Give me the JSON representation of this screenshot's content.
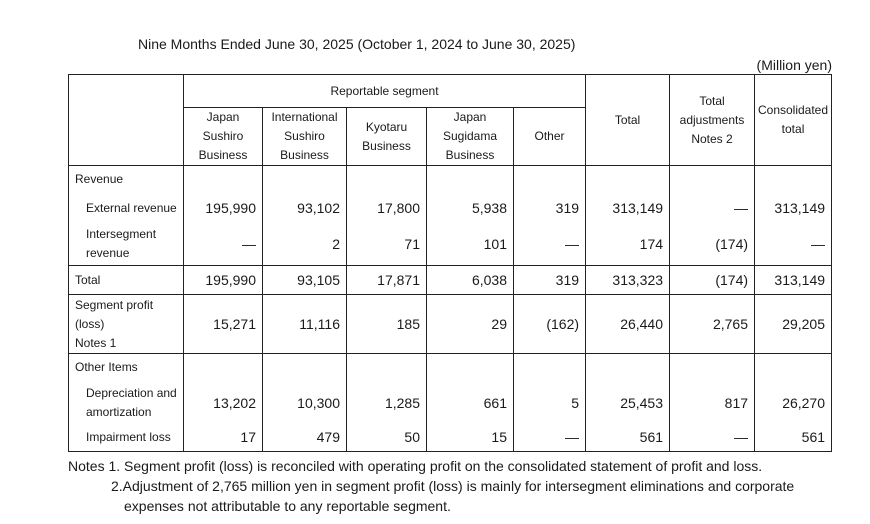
{
  "heading": "Nine Months Ended June 30, 2025 (October 1, 2024 to June 30, 2025)",
  "unit": "(Million yen)",
  "headers": {
    "reportable_segment": "Reportable segment",
    "japan_sushiro": [
      "Japan",
      "Sushiro",
      "Business"
    ],
    "intl_sushiro": [
      "International",
      "Sushiro",
      "Business"
    ],
    "kyotaru": [
      "Kyotaru",
      "Business"
    ],
    "japan_sugidama": [
      "Japan",
      "Sugidama",
      "Business"
    ],
    "other": "Other",
    "total": "Total",
    "total_adjustments": [
      "Total",
      "adjustments",
      "Notes 2"
    ],
    "consolidated_total": [
      "Consolidated",
      "total"
    ]
  },
  "rows": {
    "revenue_label": "Revenue",
    "external_revenue": {
      "label": "External revenue",
      "values": [
        "195,990",
        "93,102",
        "17,800",
        "5,938",
        "319",
        "313,149",
        "—",
        "313,149"
      ]
    },
    "intersegment_revenue": {
      "label": [
        "Intersegment",
        "revenue"
      ],
      "values": [
        "—",
        "2",
        "71",
        "101",
        "—",
        "174",
        "(174)",
        "—"
      ]
    },
    "total": {
      "label": "Total",
      "values": [
        "195,990",
        "93,105",
        "17,871",
        "6,038",
        "319",
        "313,323",
        "(174)",
        "313,149"
      ]
    },
    "segment_profit": {
      "label": [
        "Segment profit",
        "(loss)",
        "Notes 1"
      ],
      "values": [
        "15,271",
        "11,116",
        "185",
        "29",
        "(162)",
        "26,440",
        "2,765",
        "29,205"
      ]
    },
    "other_items_label": "Other Items",
    "depreciation": {
      "label": [
        "Depreciation and",
        "amortization"
      ],
      "values": [
        "13,202",
        "10,300",
        "1,285",
        "661",
        "5",
        "25,453",
        "817",
        "26,270"
      ]
    },
    "impairment": {
      "label": "Impairment loss",
      "values": [
        "17",
        "479",
        "50",
        "15",
        "—",
        "561",
        "—",
        "561"
      ]
    }
  },
  "notes": {
    "note1": "Notes 1. Segment profit (loss) is reconciled with operating profit on the consolidated statement of profit and loss.",
    "note2_line1": "2.Adjustment of 2,765  million yen in segment profit (loss) is mainly for intersegment eliminations and corporate",
    "note2_line2": "expenses not attributable to any reportable segment."
  }
}
